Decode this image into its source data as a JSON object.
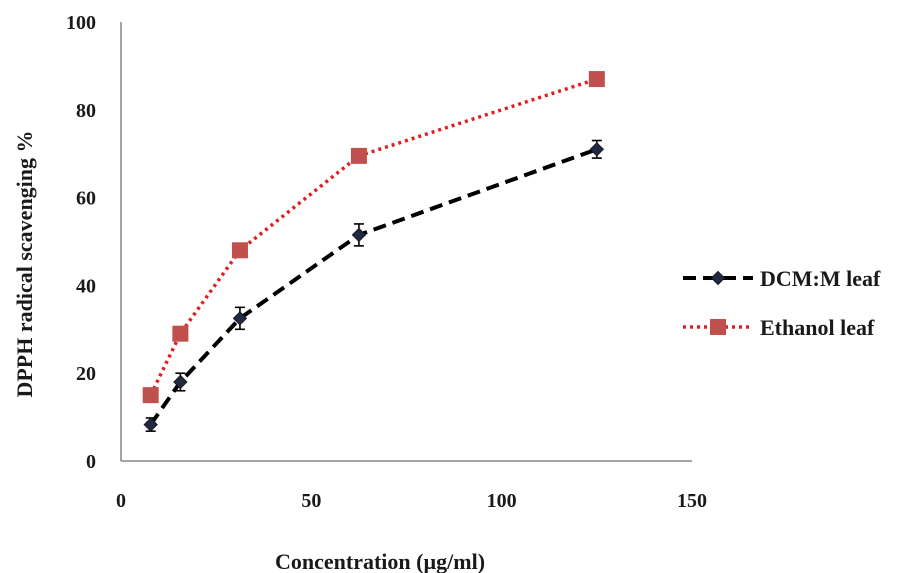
{
  "chart_data": {
    "type": "line",
    "title": "",
    "xlabel": "Concentration (µg/ml)",
    "ylabel": "DPPH radical scavenging %",
    "xlim": [
      0,
      150
    ],
    "ylim": [
      0,
      100
    ],
    "x_ticks": [
      "0",
      "50",
      "100",
      "150"
    ],
    "y_ticks": [
      "0",
      "20",
      "40",
      "60",
      "80",
      "100"
    ],
    "x_tick_values": [
      0,
      50,
      100,
      150
    ],
    "y_tick_values": [
      0,
      20,
      40,
      60,
      80,
      100
    ],
    "grid": false,
    "legend_position": "right",
    "series": [
      {
        "name": "DCM:M leaf",
        "color": "#000000",
        "line_style": "dashed",
        "marker": "diamond",
        "x": [
          7.8,
          15.6,
          31.25,
          62.5,
          125
        ],
        "y": [
          8.3,
          18.0,
          32.5,
          51.5,
          71.0
        ],
        "error": [
          1.5,
          2.0,
          2.5,
          2.5,
          2.0
        ]
      },
      {
        "name": "Ethanol leaf",
        "color": "#e02020",
        "marker_color": "#c0504d",
        "line_style": "dotted",
        "marker": "square",
        "x": [
          7.8,
          15.6,
          31.25,
          62.5,
          125
        ],
        "y": [
          15.0,
          29.0,
          48.0,
          69.5,
          87.0
        ]
      }
    ]
  }
}
